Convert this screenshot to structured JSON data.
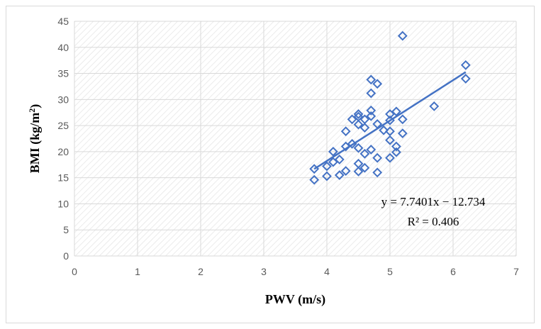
{
  "chart_data": {
    "type": "scatter",
    "title": "",
    "xlabel": "PWV (m/s)",
    "ylabel_main": "BMI (kg/m",
    "ylabel_sup": "2",
    "ylabel_close": ")",
    "xlim": [
      0,
      7
    ],
    "ylim": [
      0,
      45
    ],
    "x_ticks": [
      "0",
      "1",
      "2",
      "3",
      "4",
      "5",
      "6",
      "7"
    ],
    "y_ticks": [
      "0",
      "5",
      "10",
      "15",
      "20",
      "25",
      "30",
      "35",
      "40",
      "45"
    ],
    "grid": true,
    "legend": "none",
    "marker": "hollow-diamond",
    "colors": {
      "series": "#4472c4",
      "grid": "#d9d9d9",
      "hatch": "#e3e3e3"
    },
    "points": [
      [
        3.8,
        16.7
      ],
      [
        3.8,
        14.6
      ],
      [
        4.0,
        15.3
      ],
      [
        4.0,
        17.2
      ],
      [
        4.1,
        20.0
      ],
      [
        4.1,
        18.0
      ],
      [
        4.2,
        18.5
      ],
      [
        4.2,
        15.5
      ],
      [
        4.3,
        16.3
      ],
      [
        4.3,
        21.0
      ],
      [
        4.3,
        23.9
      ],
      [
        4.4,
        26.2
      ],
      [
        4.4,
        21.5
      ],
      [
        4.5,
        26.7
      ],
      [
        4.5,
        27.2
      ],
      [
        4.5,
        25.2
      ],
      [
        4.5,
        20.7
      ],
      [
        4.5,
        17.7
      ],
      [
        4.5,
        16.2
      ],
      [
        4.6,
        26.2
      ],
      [
        4.6,
        24.6
      ],
      [
        4.6,
        19.6
      ],
      [
        4.6,
        16.9
      ],
      [
        4.7,
        33.8
      ],
      [
        4.7,
        31.2
      ],
      [
        4.7,
        27.9
      ],
      [
        4.7,
        26.8
      ],
      [
        4.7,
        20.4
      ],
      [
        4.8,
        33.0
      ],
      [
        4.8,
        25.3
      ],
      [
        4.8,
        18.8
      ],
      [
        4.8,
        16.0
      ],
      [
        4.9,
        24.1
      ],
      [
        5.0,
        27.2
      ],
      [
        5.0,
        26.0
      ],
      [
        5.0,
        23.9
      ],
      [
        5.0,
        22.2
      ],
      [
        5.0,
        18.8
      ],
      [
        5.1,
        27.7
      ],
      [
        5.1,
        21.0
      ],
      [
        5.1,
        19.9
      ],
      [
        5.2,
        42.2
      ],
      [
        5.2,
        26.2
      ],
      [
        5.2,
        23.5
      ],
      [
        5.7,
        28.7
      ],
      [
        6.2,
        36.6
      ],
      [
        6.2,
        34.0
      ]
    ],
    "trendline": {
      "slope": 7.7401,
      "intercept": -12.734,
      "x_range": [
        3.8,
        6.2
      ],
      "equation_label": "y = 7.7401x − 12.734",
      "r2_label": "R² = 0.406"
    }
  }
}
